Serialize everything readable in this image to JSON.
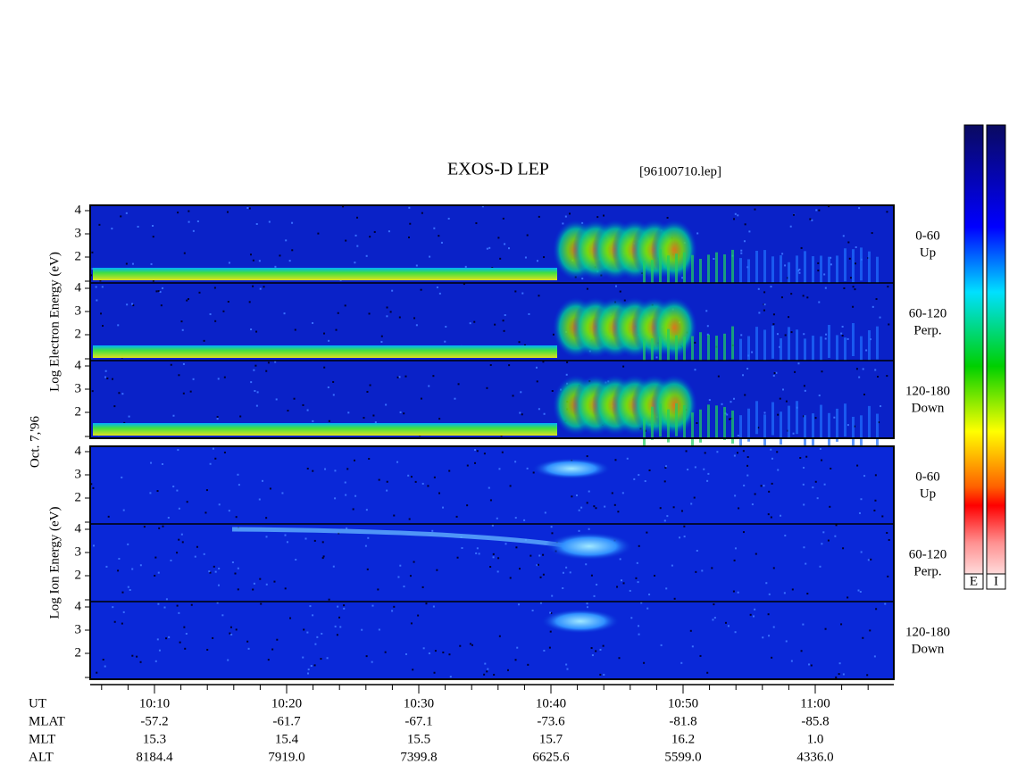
{
  "header": {
    "title": "EXOS-D LEP",
    "file": "[96100710.lep]"
  },
  "date": "Oct. 7,'96",
  "groups": [
    {
      "axis_label": "Log  Electron  Energy  (eV)",
      "panels": [
        {
          "angle": "0-60",
          "direction": "Up"
        },
        {
          "angle": "60-120",
          "direction": "Perp."
        },
        {
          "angle": "120-180",
          "direction": "Down"
        }
      ]
    },
    {
      "axis_label": "Log  Ion  Energy  (eV)",
      "panels": [
        {
          "angle": "0-60",
          "direction": "Up"
        },
        {
          "angle": "60-120",
          "direction": "Perp."
        },
        {
          "angle": "120-180",
          "direction": "Down"
        }
      ]
    }
  ],
  "yticks": [
    "4",
    "3",
    "2"
  ],
  "ephemeris": {
    "rows": [
      {
        "label": "UT",
        "values": [
          "10:10",
          "10:20",
          "10:30",
          "10:40",
          "10:50",
          "11:00"
        ]
      },
      {
        "label": "MLAT",
        "values": [
          "-57.2",
          "-61.7",
          "-67.1",
          "-73.6",
          "-81.8",
          "-85.8"
        ]
      },
      {
        "label": "MLT",
        "values": [
          "15.3",
          "15.4",
          "15.5",
          "15.7",
          "16.2",
          "1.0"
        ]
      },
      {
        "label": "ALT",
        "values": [
          "8184.4",
          "7919.0",
          "7399.8",
          "6625.6",
          "5599.0",
          "4336.0"
        ]
      }
    ]
  },
  "colorbars": [
    "E",
    "I"
  ]
}
